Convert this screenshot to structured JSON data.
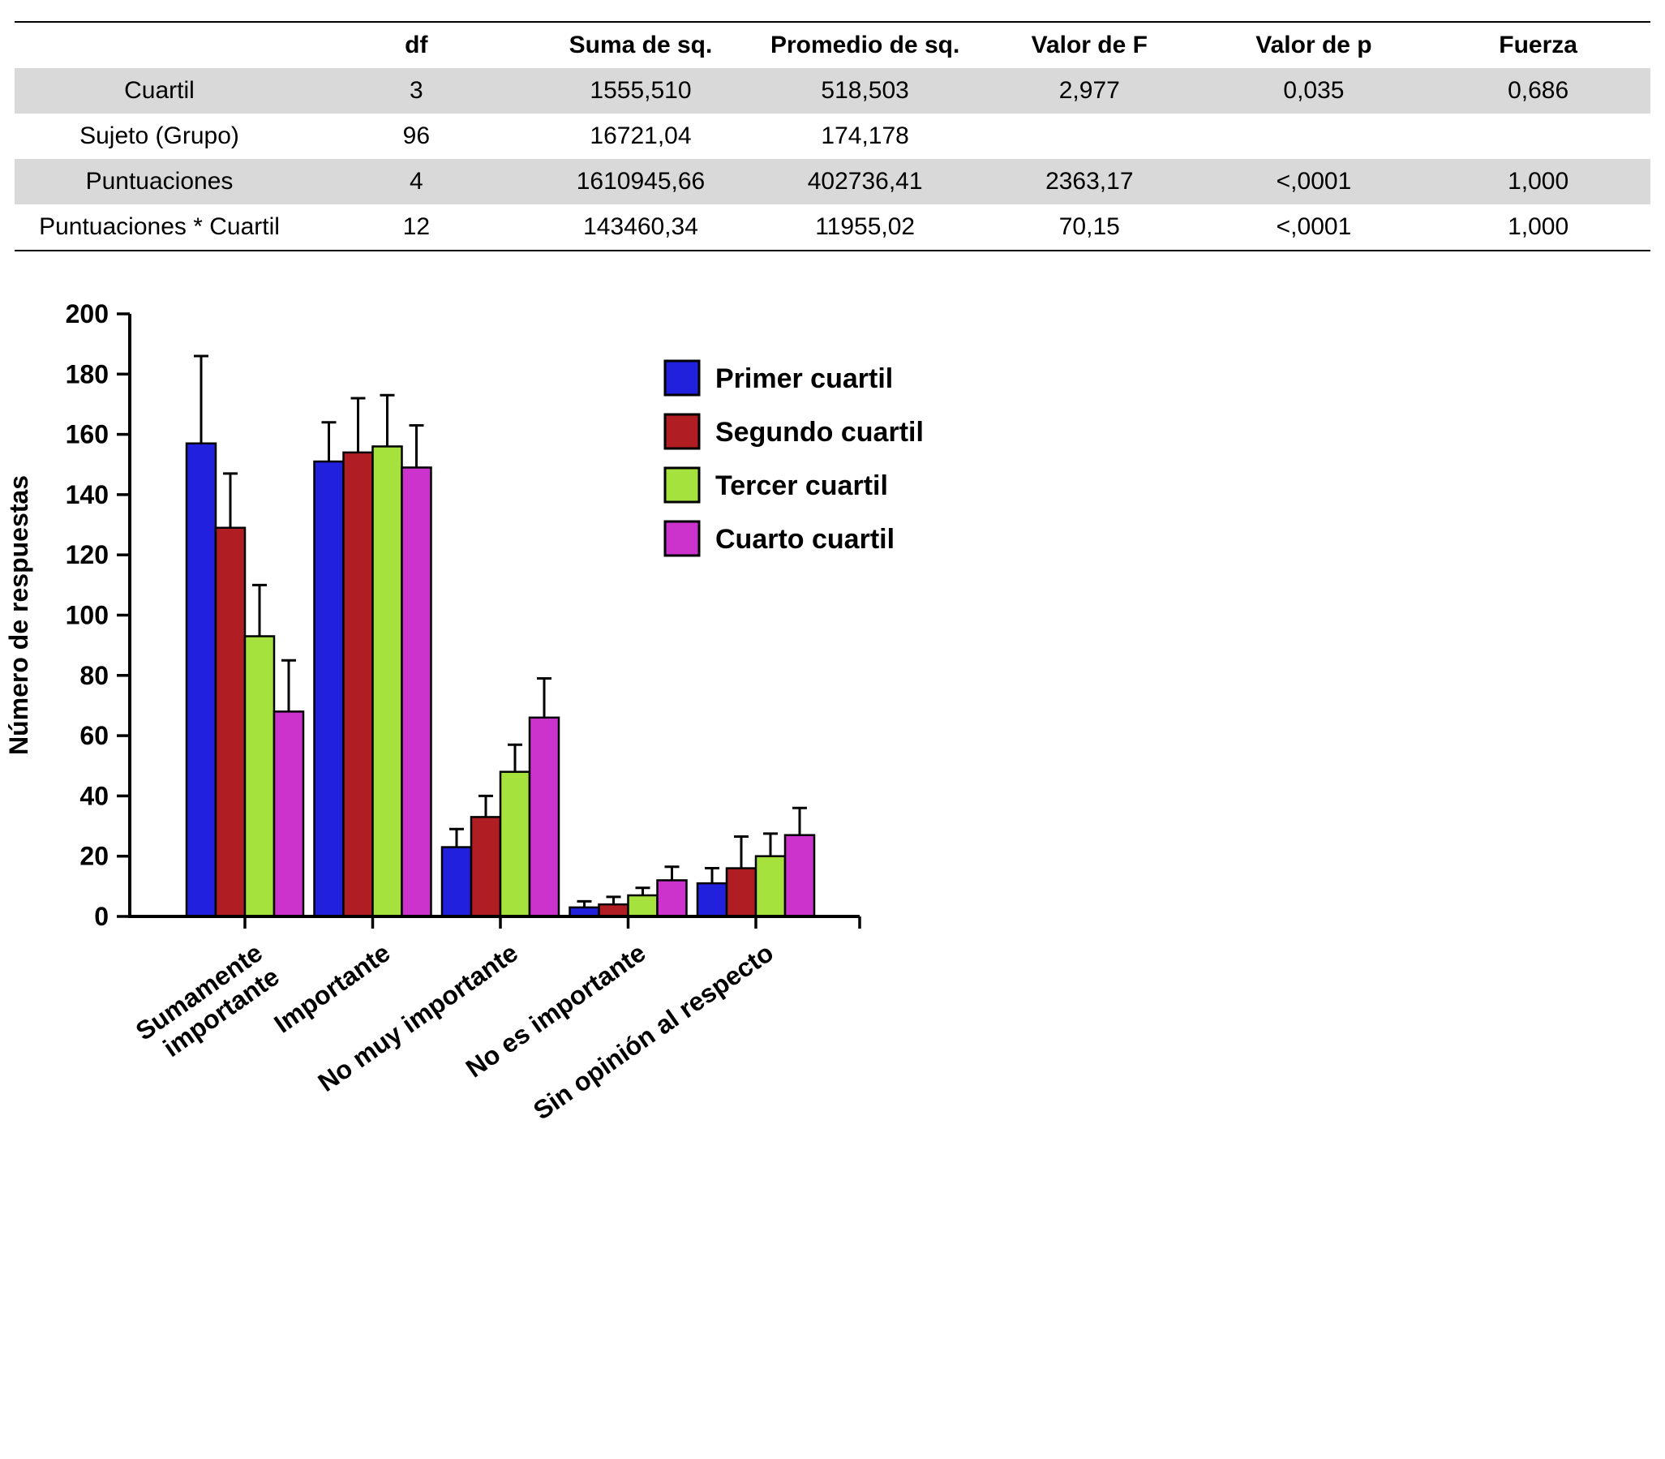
{
  "chart_data": [
    {
      "type": "table",
      "columns": [
        "",
        "df",
        "Suma de sq.",
        "Promedio de sq.",
        "Valor de F",
        "Valor de p",
        "Fuerza"
      ],
      "rows": [
        [
          "Cuartil",
          "3",
          "1555,510",
          "518,503",
          "2,977",
          "0,035",
          "0,686"
        ],
        [
          "Sujeto (Grupo)",
          "96",
          "16721,04",
          "174,178",
          "",
          "",
          ""
        ],
        [
          "Puntuaciones",
          "4",
          "1610945,66",
          "402736,41",
          "2363,17",
          "<,0001",
          "1,000"
        ],
        [
          "Puntuaciones * Cuartil",
          "12",
          "143460,34",
          "11955,02",
          "70,15",
          "<,0001",
          "1,000"
        ]
      ],
      "shaded_row_indices": [
        0,
        2
      ],
      "shade_color": "#d9d9d9"
    },
    {
      "type": "bar",
      "title": "",
      "xlabel": "",
      "ylabel": "Número de respuestas",
      "ylim": [
        0,
        200
      ],
      "ytick_step": 20,
      "grid": false,
      "legend_position": "top-right-inside",
      "error_bars": "upper",
      "categories": [
        "Sumamente\nimportante",
        "Importante",
        "No muy importante",
        "No es importante",
        "Sin opinión al respecto"
      ],
      "series": [
        {
          "name": "Primer cuartil",
          "color": "#2020dd",
          "values": [
            157,
            151,
            23,
            3,
            11
          ],
          "errors_up": [
            29,
            13,
            6,
            2,
            5
          ]
        },
        {
          "name": "Segundo cuartil",
          "color": "#b01e23",
          "values": [
            129,
            154,
            33,
            4,
            16
          ],
          "errors_up": [
            18,
            18,
            7,
            2.5,
            10.5
          ]
        },
        {
          "name": "Tercer cuartil",
          "color": "#a6e23e",
          "values": [
            93,
            156,
            48,
            7,
            20
          ],
          "errors_up": [
            17,
            17,
            9,
            2.5,
            7.5
          ]
        },
        {
          "name": "Cuarto cuartil",
          "color": "#cc33cc",
          "values": [
            68,
            149,
            66,
            12,
            27
          ],
          "errors_up": [
            17,
            14,
            13,
            4.5,
            9
          ]
        }
      ]
    }
  ]
}
